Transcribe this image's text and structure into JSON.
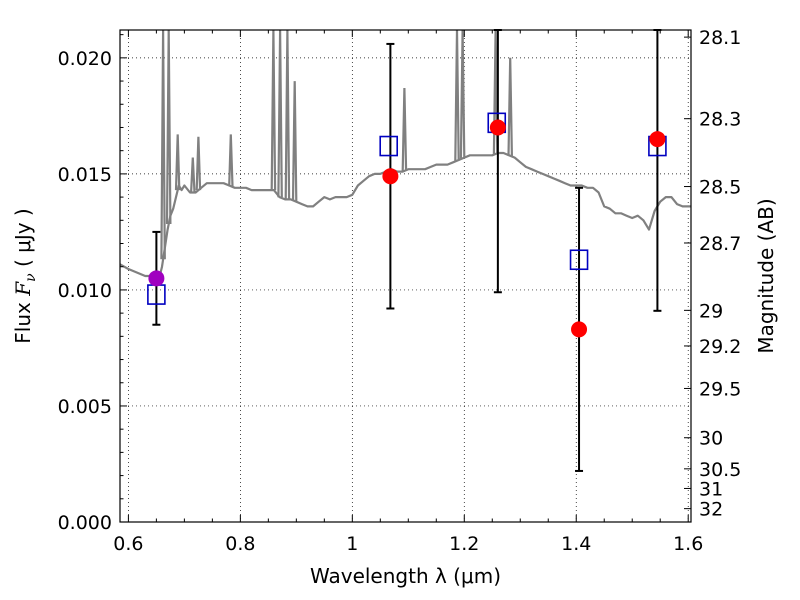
{
  "chart_data": {
    "type": "scatter",
    "title": "",
    "xlabel": "Wavelength  λ (μm)",
    "ylabel": "Flux  F_ν ( μJy )",
    "ylabel_parts": {
      "pre": "Flux  ",
      "sym": "F",
      "sub": "ν",
      "post": " ( μJy )"
    },
    "y2label": "Magnitude (AB)",
    "xlim": [
      0.585,
      1.605
    ],
    "ylim": [
      0.0,
      0.0212
    ],
    "grid": true,
    "legend": "none",
    "x_ticks": [
      0.6,
      0.8,
      1.0,
      1.2,
      1.4,
      1.6
    ],
    "x_tick_labels": [
      "0.6",
      "0.8",
      "1",
      "1.2",
      "1.4",
      "1.6"
    ],
    "y_ticks": [
      0.0,
      0.005,
      0.01,
      0.015,
      0.02
    ],
    "y_tick_labels": [
      "0.000",
      "0.005",
      "0.010",
      "0.015",
      "0.020"
    ],
    "y2_ticks": [
      {
        "mag": 28.1,
        "label": "28.1"
      },
      {
        "mag": 28.3,
        "label": "28.3"
      },
      {
        "mag": 28.5,
        "label": "28.5"
      },
      {
        "mag": 28.7,
        "label": "28.7"
      },
      {
        "mag": 29.0,
        "label": "29"
      },
      {
        "mag": 29.2,
        "label": "29.2"
      },
      {
        "mag": 29.5,
        "label": "29.5"
      },
      {
        "mag": 30.0,
        "label": "30"
      },
      {
        "mag": 30.5,
        "label": "30.5"
      },
      {
        "mag": 31.0,
        "label": "31"
      },
      {
        "mag": 32.0,
        "label": "32"
      }
    ],
    "colors": {
      "model": "#808080",
      "observed": "#ff0000",
      "observed_first": "#a000c0",
      "model_flux": "#0000c0",
      "error_bar": "#000000"
    },
    "series": [
      {
        "kind": "model_sed",
        "x": [
          0.585,
          0.6,
          0.63,
          0.645,
          0.65,
          0.655,
          0.66,
          0.665,
          0.67,
          0.675,
          0.68,
          0.685,
          0.69,
          0.695,
          0.7,
          0.71,
          0.72,
          0.73,
          0.74,
          0.75,
          0.76,
          0.77,
          0.78,
          0.79,
          0.8,
          0.81,
          0.82,
          0.83,
          0.84,
          0.85,
          0.86,
          0.87,
          0.88,
          0.89,
          0.9,
          0.91,
          0.92,
          0.93,
          0.94,
          0.95,
          0.96,
          0.97,
          0.98,
          0.99,
          1.0,
          1.01,
          1.02,
          1.03,
          1.04,
          1.05,
          1.06,
          1.07,
          1.08,
          1.09,
          1.1,
          1.11,
          1.12,
          1.13,
          1.14,
          1.15,
          1.16,
          1.17,
          1.18,
          1.19,
          1.2,
          1.21,
          1.22,
          1.23,
          1.24,
          1.25,
          1.26,
          1.27,
          1.28,
          1.29,
          1.3,
          1.31,
          1.32,
          1.33,
          1.34,
          1.35,
          1.36,
          1.37,
          1.38,
          1.39,
          1.4,
          1.41,
          1.42,
          1.43,
          1.44,
          1.45,
          1.46,
          1.47,
          1.48,
          1.49,
          1.5,
          1.51,
          1.52,
          1.53,
          1.54,
          1.55,
          1.56,
          1.57,
          1.58,
          1.59,
          1.6,
          1.605
        ],
        "y": [
          0.0111,
          0.0109,
          0.0106,
          0.0106,
          0.0105,
          0.0105,
          0.011,
          0.0118,
          0.0126,
          0.0132,
          0.0135,
          0.014,
          0.0145,
          0.0143,
          0.0145,
          0.0142,
          0.0142,
          0.0144,
          0.0146,
          0.0146,
          0.0146,
          0.0146,
          0.0145,
          0.0144,
          0.0144,
          0.0144,
          0.0143,
          0.0143,
          0.0143,
          0.0143,
          0.0143,
          0.014,
          0.0139,
          0.0139,
          0.0138,
          0.0137,
          0.0136,
          0.0136,
          0.0138,
          0.014,
          0.0139,
          0.014,
          0.014,
          0.014,
          0.0141,
          0.0145,
          0.0147,
          0.0149,
          0.015,
          0.015,
          0.0151,
          0.0152,
          0.0151,
          0.0151,
          0.0152,
          0.0152,
          0.0152,
          0.0152,
          0.0153,
          0.0154,
          0.0154,
          0.0154,
          0.0155,
          0.0156,
          0.0157,
          0.0158,
          0.0158,
          0.0158,
          0.0158,
          0.0158,
          0.0159,
          0.0159,
          0.0158,
          0.0157,
          0.0155,
          0.0153,
          0.0152,
          0.0151,
          0.015,
          0.0149,
          0.0148,
          0.0147,
          0.0146,
          0.0145,
          0.0145,
          0.0145,
          0.0144,
          0.0144,
          0.0142,
          0.0136,
          0.0135,
          0.0133,
          0.0133,
          0.0132,
          0.0131,
          0.0132,
          0.013,
          0.0126,
          0.0134,
          0.0138,
          0.014,
          0.014,
          0.0137,
          0.0136,
          0.0136,
          0.0136
        ]
      },
      {
        "kind": "emission_lines",
        "lines": [
          {
            "x": 0.662,
            "peak": 0.0212
          },
          {
            "x": 0.672,
            "peak": 0.0212
          },
          {
            "x": 0.688,
            "peak": 0.0167
          },
          {
            "x": 0.715,
            "peak": 0.0157
          },
          {
            "x": 0.725,
            "peak": 0.0166
          },
          {
            "x": 0.783,
            "peak": 0.0167
          },
          {
            "x": 0.859,
            "peak": 0.0212
          },
          {
            "x": 0.871,
            "peak": 0.0212
          },
          {
            "x": 0.884,
            "peak": 0.0212
          },
          {
            "x": 0.897,
            "peak": 0.019
          },
          {
            "x": 1.093,
            "peak": 0.0187
          },
          {
            "x": 1.187,
            "peak": 0.0212
          },
          {
            "x": 1.197,
            "peak": 0.0212
          },
          {
            "x": 1.256,
            "peak": 0.0212
          },
          {
            "x": 1.282,
            "peak": 0.02
          }
        ]
      },
      {
        "kind": "observed",
        "x": [
          0.65,
          1.068,
          1.26,
          1.405,
          1.545
        ],
        "y": [
          0.0105,
          0.0149,
          0.017,
          0.0083,
          0.0165
        ],
        "err_low": [
          0.0085,
          0.0092,
          0.0099,
          0.0022,
          0.0091
        ],
        "err_high": [
          0.0125,
          0.0206,
          0.0212,
          0.0144,
          0.0212
        ]
      },
      {
        "kind": "model_flux",
        "x": [
          0.65,
          1.065,
          1.258,
          1.405,
          1.545
        ],
        "y": [
          0.0098,
          0.0162,
          0.0172,
          0.0113,
          0.0162
        ]
      }
    ]
  }
}
